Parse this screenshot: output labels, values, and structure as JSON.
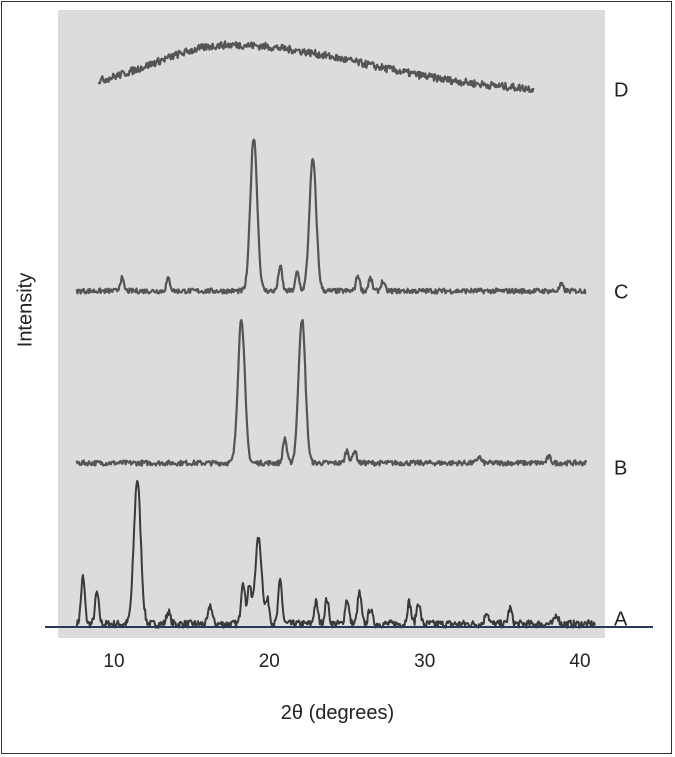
{
  "chart_data": {
    "type": "line",
    "title": "",
    "xlabel": "2θ (degrees)",
    "ylabel": "Intensity",
    "xlim": [
      7.5,
      41
    ],
    "xticks": [
      10,
      20,
      30,
      40
    ],
    "grid": false,
    "legend": "none",
    "series": [
      {
        "name": "A",
        "color": "#3a3a3a",
        "baseline_amplitude": 0.006,
        "x_range": [
          7.6,
          41
        ],
        "peaks": [
          {
            "x": 8.0,
            "h": 0.075
          },
          {
            "x": 8.9,
            "h": 0.05
          },
          {
            "x": 11.5,
            "h": 0.23
          },
          {
            "x": 13.5,
            "h": 0.02
          },
          {
            "x": 16.2,
            "h": 0.03
          },
          {
            "x": 18.3,
            "h": 0.07
          },
          {
            "x": 18.7,
            "h": 0.06
          },
          {
            "x": 19.3,
            "h": 0.135
          },
          {
            "x": 19.9,
            "h": 0.035
          },
          {
            "x": 20.7,
            "h": 0.07
          },
          {
            "x": 23.0,
            "h": 0.035
          },
          {
            "x": 23.7,
            "h": 0.04
          },
          {
            "x": 25.0,
            "h": 0.04
          },
          {
            "x": 25.8,
            "h": 0.05
          },
          {
            "x": 26.5,
            "h": 0.025
          },
          {
            "x": 29.0,
            "h": 0.035
          },
          {
            "x": 29.6,
            "h": 0.035
          },
          {
            "x": 34.0,
            "h": 0.02
          },
          {
            "x": 35.5,
            "h": 0.025
          },
          {
            "x": 38.5,
            "h": 0.015
          }
        ]
      },
      {
        "name": "B",
        "color": "#555555",
        "baseline_amplitude": 0.004,
        "x_range": [
          7.6,
          40.4
        ],
        "peaks": [
          {
            "x": 18.2,
            "h": 0.23
          },
          {
            "x": 21.0,
            "h": 0.04
          },
          {
            "x": 22.1,
            "h": 0.23
          },
          {
            "x": 25.0,
            "h": 0.02
          },
          {
            "x": 25.5,
            "h": 0.02
          },
          {
            "x": 33.5,
            "h": 0.01
          },
          {
            "x": 38.0,
            "h": 0.01
          }
        ]
      },
      {
        "name": "C",
        "color": "#555555",
        "baseline_amplitude": 0.004,
        "x_range": [
          7.6,
          40.4
        ],
        "peaks": [
          {
            "x": 10.5,
            "h": 0.02
          },
          {
            "x": 13.5,
            "h": 0.02
          },
          {
            "x": 19.0,
            "h": 0.245
          },
          {
            "x": 20.7,
            "h": 0.04
          },
          {
            "x": 21.8,
            "h": 0.03
          },
          {
            "x": 22.8,
            "h": 0.21
          },
          {
            "x": 25.7,
            "h": 0.025
          },
          {
            "x": 26.5,
            "h": 0.02
          },
          {
            "x": 27.3,
            "h": 0.015
          },
          {
            "x": 38.8,
            "h": 0.01
          }
        ]
      },
      {
        "name": "D",
        "color": "#555555",
        "baseline_amplitude": 0.006,
        "x_range": [
          9.0,
          37.0
        ],
        "broad_hump": {
          "center": 17.5,
          "height": 0.075
        }
      }
    ]
  }
}
